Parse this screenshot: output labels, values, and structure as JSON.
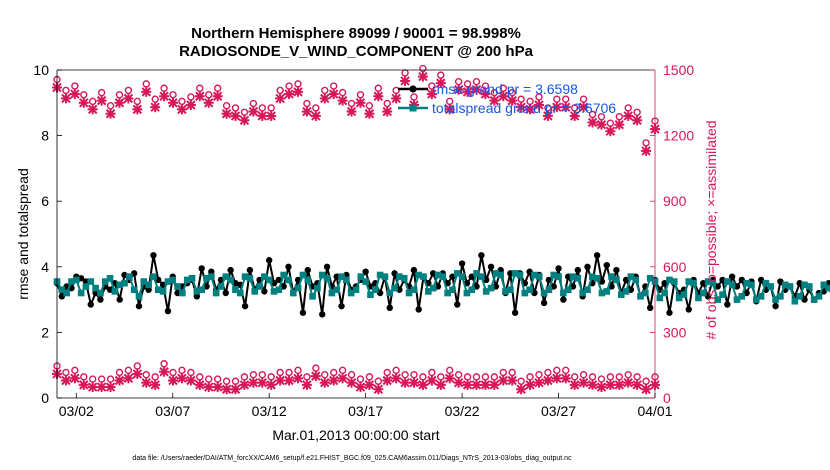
{
  "chart_data": {
    "type": "line",
    "title": [
      "Northern Hemisphere 89099 / 90001 = 98.998%",
      "RADIOSONDE_V_WIND_COMPONENT @ 200 hPa"
    ],
    "xlabel": "Mar.01,2013 00:00:00 start",
    "ylabel_left": "rmse and totalspread",
    "ylabel_right": "# of obs: o=possible; ×=assimilated",
    "ylim_left": [
      0,
      10
    ],
    "ylim_right": [
      0,
      1500
    ],
    "yticks_left": [
      "0",
      "2",
      "4",
      "6",
      "8",
      "10"
    ],
    "yticks_right": [
      "0",
      "300",
      "600",
      "900",
      "1200",
      "1500"
    ],
    "xlim_days": [
      1.0,
      32.0
    ],
    "xticks": [
      {
        "day": 2,
        "label": "03/02"
      },
      {
        "day": 7,
        "label": "03/07"
      },
      {
        "day": 12,
        "label": "03/12"
      },
      {
        "day": 17,
        "label": "03/17"
      },
      {
        "day": 22,
        "label": "03/22"
      },
      {
        "day": 27,
        "label": "03/27"
      },
      {
        "day": 32,
        "label": "04/01"
      }
    ],
    "sample_step_days": 0.25,
    "series": [
      {
        "name": "rmse",
        "legend": "rmse grand pr = 3.6598",
        "color": "#000000",
        "axis": "left",
        "values": [
          3.5,
          3.1,
          3.4,
          3.35,
          3.7,
          3.65,
          3.55,
          2.85,
          3.2,
          3.0,
          3.4,
          3.3,
          3.5,
          3.0,
          3.75,
          3.6,
          3.8,
          2.8,
          3.4,
          3.3,
          4.35,
          3.6,
          3.45,
          2.65,
          3.7,
          3.2,
          3.4,
          3.5,
          3.6,
          3.1,
          3.95,
          3.4,
          3.85,
          3.3,
          3.6,
          3.2,
          3.9,
          3.5,
          3.45,
          2.8,
          3.9,
          3.3,
          3.6,
          3.25,
          4.2,
          3.5,
          3.6,
          3.4,
          4.0,
          3.2,
          3.6,
          2.6,
          3.9,
          3.4,
          3.5,
          2.55,
          4.0,
          3.4,
          3.7,
          2.8,
          3.75,
          3.3,
          3.4,
          3.6,
          3.85,
          3.4,
          3.5,
          3.2,
          3.7,
          2.75,
          3.8,
          3.3,
          3.6,
          3.4,
          3.9,
          2.7,
          3.7,
          3.5,
          3.8,
          3.4,
          3.8,
          3.5,
          3.7,
          2.85,
          4.1,
          3.5,
          3.7,
          3.4,
          4.35,
          3.6,
          4.0,
          3.4,
          3.9,
          3.2,
          3.8,
          2.6,
          3.8,
          3.5,
          3.85,
          3.2,
          3.75,
          2.9,
          3.6,
          3.4,
          3.95,
          3.0,
          3.7,
          3.4,
          3.9,
          3.1,
          4.0,
          3.5,
          4.35,
          3.55,
          4.05,
          3.4,
          3.9,
          3.2,
          3.6,
          3.3,
          3.7,
          3.1,
          3.4,
          2.75,
          3.6,
          3.3,
          3.5,
          2.6,
          3.5,
          3.2,
          3.3,
          2.7,
          3.6,
          3.2,
          3.5,
          3.1,
          3.6,
          3.4,
          3.6,
          2.85,
          3.7,
          3.4,
          3.6,
          3.2,
          3.55,
          2.95,
          3.6,
          3.3,
          3.4,
          2.8,
          3.55,
          3.3,
          3.4,
          3.1,
          3.5,
          3.0,
          3.3,
          3.0,
          3.2,
          3.25,
          3.5,
          3.2,
          3.4,
          2.9,
          3.4,
          3.1,
          3.45,
          3.0,
          3.35,
          2.4
        ]
      },
      {
        "name": "totalspread",
        "legend": "totalspread grand pr = 3.6706",
        "color": "#008080",
        "axis": "left",
        "values": [
          3.55,
          3.3,
          3.2,
          3.55,
          3.6,
          3.2,
          3.4,
          3.55,
          3.35,
          3.2,
          3.55,
          3.65,
          3.25,
          3.45,
          3.5,
          3.7,
          3.3,
          3.1,
          3.55,
          3.45,
          3.7,
          3.3,
          3.25,
          3.55,
          3.6,
          3.4,
          3.2,
          3.6,
          3.65,
          3.25,
          3.3,
          3.65,
          3.7,
          3.2,
          3.4,
          3.7,
          3.6,
          3.3,
          3.2,
          3.7,
          3.65,
          3.25,
          3.4,
          3.7,
          3.6,
          3.25,
          3.3,
          3.75,
          3.6,
          3.2,
          3.35,
          3.75,
          3.6,
          3.1,
          3.35,
          3.75,
          3.65,
          3.2,
          3.3,
          3.7,
          3.6,
          3.2,
          3.3,
          3.7,
          3.55,
          3.15,
          3.3,
          3.75,
          3.7,
          3.2,
          3.35,
          3.7,
          3.65,
          3.2,
          3.3,
          3.75,
          3.7,
          3.25,
          3.35,
          3.75,
          3.7,
          3.2,
          3.3,
          3.8,
          3.7,
          3.2,
          3.3,
          3.8,
          3.7,
          3.25,
          3.35,
          3.8,
          3.75,
          3.25,
          3.3,
          3.8,
          3.75,
          3.2,
          3.3,
          3.75,
          3.7,
          3.2,
          3.3,
          3.75,
          3.7,
          3.2,
          3.3,
          3.7,
          3.65,
          3.2,
          3.3,
          3.7,
          3.65,
          3.2,
          3.25,
          3.7,
          3.6,
          3.15,
          3.25,
          3.7,
          3.6,
          3.1,
          3.2,
          3.65,
          3.55,
          3.05,
          3.2,
          3.6,
          3.55,
          3.05,
          3.15,
          3.55,
          3.5,
          3.05,
          3.2,
          3.55,
          3.5,
          3.0,
          3.15,
          3.55,
          3.45,
          3.0,
          3.1,
          3.5,
          3.45,
          3.0,
          3.1,
          3.5,
          3.4,
          3.0,
          3.1,
          3.45,
          3.4,
          2.95,
          3.1,
          3.45,
          3.4,
          3.0,
          3.1,
          3.45,
          3.35,
          3.05,
          3.1,
          3.45,
          3.35,
          3.05,
          3.15,
          3.45,
          3.35,
          3.0,
          3.1,
          3.4,
          3.35,
          3.3
        ]
      },
      {
        "name": "obs possible",
        "marker": "o",
        "color": "#d6185a",
        "axis": "right",
        "values": [
          1420,
          1370,
          1390,
          1350,
          1320,
          1360,
          1300,
          1350,
          1370,
          1320,
          1400,
          1330,
          1380,
          1350,
          1320,
          1340,
          1380,
          1350,
          1380,
          1300,
          1290,
          1270,
          1310,
          1290,
          1290,
          1370,
          1390,
          1400,
          1310,
          1290,
          1370,
          1390,
          1360,
          1310,
          1350,
          1300,
          1380,
          1310,
          1370,
          1450,
          1340,
          1470,
          1390,
          1440,
          1320,
          1410,
          1400,
          1410,
          1390,
          1360,
          1380,
          1360,
          1330,
          1320,
          1340,
          1290,
          1330,
          1330,
          1290,
          1330,
          1260,
          1250,
          1220,
          1250,
          1290,
          1270,
          1130,
          1230
        ]
      },
      {
        "name": "obs assimilated",
        "marker": "x",
        "color": "#d6185a",
        "axis": "right",
        "values": [
          1420,
          1370,
          1390,
          1350,
          1320,
          1360,
          1300,
          1350,
          1370,
          1320,
          1400,
          1330,
          1380,
          1350,
          1320,
          1340,
          1380,
          1350,
          1380,
          1300,
          1290,
          1270,
          1310,
          1290,
          1290,
          1370,
          1390,
          1400,
          1310,
          1290,
          1370,
          1390,
          1360,
          1310,
          1350,
          1300,
          1380,
          1310,
          1370,
          1450,
          1340,
          1470,
          1390,
          1440,
          1320,
          1410,
          1400,
          1410,
          1390,
          1360,
          1380,
          1360,
          1330,
          1320,
          1340,
          1290,
          1330,
          1330,
          1290,
          1330,
          1260,
          1250,
          1220,
          1250,
          1290,
          1270,
          1130,
          1230
        ]
      },
      {
        "name": "obs lower (possible)",
        "marker": "o",
        "color": "#d6185a",
        "axis": "right",
        "values": [
          110,
          80,
          90,
          60,
          50,
          50,
          50,
          80,
          90,
          110,
          70,
          60,
          120,
          80,
          90,
          80,
          60,
          50,
          50,
          40,
          40,
          60,
          70,
          70,
          60,
          80,
          80,
          90,
          60,
          100,
          70,
          80,
          90,
          70,
          50,
          60,
          40,
          80,
          90,
          70,
          70,
          60,
          80,
          60,
          90,
          70,
          60,
          60,
          60,
          60,
          80,
          80,
          40,
          60,
          70,
          80,
          90,
          90,
          60,
          70,
          60,
          50,
          60,
          60,
          70,
          60,
          40,
          60
        ]
      },
      {
        "name": "obs lower (assimilated)",
        "marker": "x",
        "color": "#d6185a",
        "axis": "right",
        "values": [
          110,
          80,
          90,
          60,
          50,
          50,
          50,
          80,
          90,
          110,
          70,
          60,
          120,
          80,
          90,
          80,
          60,
          50,
          50,
          40,
          40,
          60,
          70,
          70,
          60,
          80,
          80,
          90,
          60,
          100,
          70,
          80,
          90,
          70,
          50,
          60,
          40,
          80,
          90,
          70,
          70,
          60,
          80,
          60,
          90,
          70,
          60,
          60,
          60,
          60,
          80,
          80,
          40,
          60,
          70,
          80,
          90,
          90,
          60,
          70,
          60,
          50,
          60,
          60,
          70,
          60,
          40,
          60
        ]
      }
    ],
    "legend_position": "top-right"
  },
  "footer": {
    "data_file": "data file: /Users/raeder/DAI/ATM_forcXX/CAM6_setup/f.e21.FHIST_BGC.f09_025.CAM6assim.011/Diags_NTrS_2013-03/obs_diag_output.nc"
  }
}
